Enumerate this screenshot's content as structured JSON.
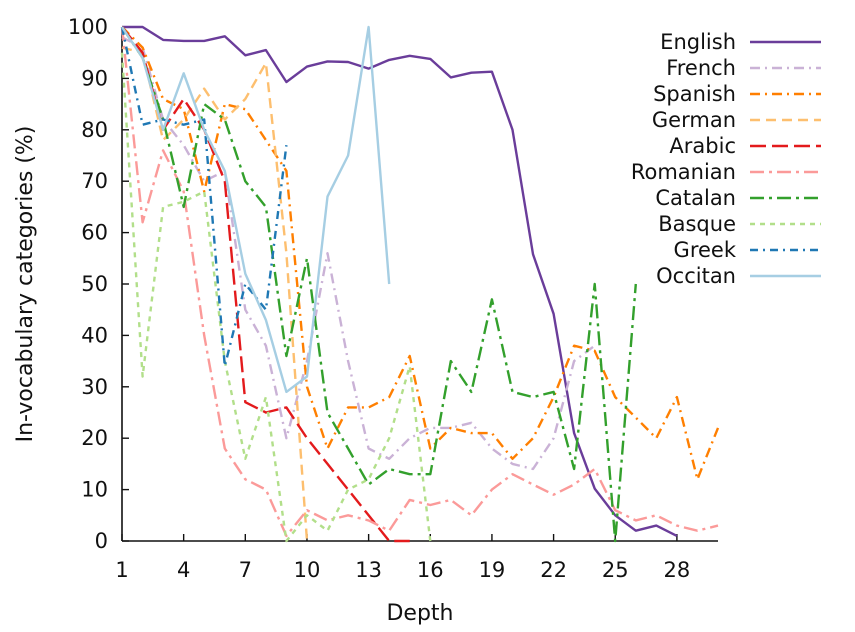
{
  "chart_data": {
    "type": "line",
    "title": "",
    "xlabel": "Depth",
    "ylabel": "In-vocabulary categories (%)",
    "xlim": [
      1,
      30
    ],
    "ylim": [
      0,
      100
    ],
    "xticks": [
      1,
      4,
      7,
      10,
      13,
      16,
      19,
      22,
      25,
      28
    ],
    "yticks": [
      0,
      10,
      20,
      30,
      40,
      50,
      60,
      70,
      80,
      90,
      100
    ],
    "grid": false,
    "legend_position": "top-right",
    "series": [
      {
        "name": "English",
        "color": "#6a3d9a",
        "dash": "solid",
        "x": [
          1,
          2,
          3,
          4,
          5,
          6,
          7,
          8,
          9,
          10,
          11,
          12,
          13,
          14,
          15,
          16,
          17,
          18,
          19,
          20,
          21,
          22,
          23,
          24,
          25,
          26,
          27,
          28
        ],
        "y": [
          100,
          100,
          97.5,
          97.3,
          97.3,
          98.2,
          94.5,
          95.5,
          89.3,
          92.3,
          93.3,
          93.2,
          91.9,
          93.6,
          94.4,
          93.8,
          90.2,
          91.1,
          91.3,
          80,
          55.8,
          44.2,
          21,
          10.2,
          5,
          2,
          3,
          1
        ]
      },
      {
        "name": "French",
        "color": "#cab2d6",
        "dash": "10,5,2,5",
        "x": [
          1,
          2,
          3,
          4,
          5,
          6,
          7,
          8,
          9,
          10,
          11,
          12,
          13,
          14,
          15,
          16,
          17,
          18,
          19,
          20,
          21,
          22,
          23,
          24
        ],
        "y": [
          98,
          96,
          82,
          77,
          70,
          72,
          45,
          38,
          20,
          35,
          56,
          35,
          18,
          16,
          20,
          22,
          22,
          23,
          18,
          15,
          14,
          20,
          35,
          38
        ]
      },
      {
        "name": "Spanish",
        "color": "#ff7f00",
        "dash": "10,5,2,5",
        "x": [
          1,
          2,
          3,
          4,
          5,
          6,
          7,
          8,
          9,
          10,
          11,
          12,
          13,
          14,
          15,
          16,
          17,
          18,
          19,
          20,
          21,
          22,
          23,
          24,
          25,
          26,
          27,
          28,
          29,
          30
        ],
        "y": [
          100,
          96,
          86,
          84,
          68,
          85,
          84,
          78,
          72,
          30,
          18,
          26,
          26,
          28,
          36,
          18,
          22,
          21,
          21,
          16,
          20,
          28,
          38,
          37,
          28,
          24,
          20,
          28,
          12,
          22
        ]
      },
      {
        "name": "German",
        "color": "#fdbf6f",
        "dash": "10,6",
        "x": [
          1,
          2,
          3,
          4,
          5,
          6,
          7,
          8,
          9,
          10
        ],
        "y": [
          96,
          95,
          78,
          82,
          88,
          82,
          86,
          93,
          56,
          0
        ]
      },
      {
        "name": "Arabic",
        "color": "#e31a1c",
        "dash": "16,6",
        "x": [
          1,
          2,
          3,
          4,
          5,
          6,
          7,
          8,
          9,
          10,
          11,
          12,
          13,
          14,
          15
        ],
        "y": [
          100,
          95,
          80,
          86,
          80,
          70,
          27,
          25,
          26,
          20,
          15,
          10,
          5,
          0,
          0
        ]
      },
      {
        "name": "Romanian",
        "color": "#fb9a99",
        "dash": "14,5,3,5",
        "x": [
          1,
          2,
          3,
          4,
          5,
          6,
          7,
          8,
          9,
          10,
          11,
          12,
          13,
          14,
          15,
          16,
          17,
          18,
          19,
          20,
          21,
          22,
          23,
          24,
          25,
          26,
          27,
          28,
          29,
          30
        ],
        "y": [
          100,
          62,
          76,
          68,
          40,
          18,
          12,
          10,
          1,
          6,
          4,
          5,
          4,
          2,
          8,
          7,
          8,
          5,
          10,
          13,
          11,
          9,
          11,
          14,
          6,
          4,
          5,
          3,
          2,
          3
        ]
      },
      {
        "name": "Catalan",
        "color": "#33a02c",
        "dash": "14,5,3,5",
        "x": [
          1,
          2,
          3,
          4,
          5,
          6,
          7,
          8,
          9,
          10,
          11,
          12,
          13,
          14,
          15,
          16,
          17,
          18,
          19,
          20,
          21,
          22,
          23,
          24,
          25,
          26
        ],
        "y": [
          100,
          94,
          82,
          65,
          85,
          82,
          70,
          65,
          36,
          55,
          25,
          18,
          11,
          14,
          13,
          13,
          35,
          29,
          47,
          29,
          28,
          29,
          14,
          50,
          0,
          50
        ]
      },
      {
        "name": "Basque",
        "color": "#b2df8a",
        "dash": "5,5",
        "x": [
          1,
          2,
          3,
          4,
          5,
          6,
          7,
          8,
          9,
          10,
          11,
          12,
          13,
          14,
          15,
          16
        ],
        "y": [
          95,
          32,
          65,
          66,
          68,
          35,
          16,
          28,
          0,
          5,
          2,
          10,
          12,
          20,
          34,
          0
        ]
      },
      {
        "name": "Greek",
        "color": "#1f78b4",
        "dash": "8,5,2,5",
        "x": [
          1,
          2,
          3,
          4,
          5,
          6,
          7,
          8,
          9
        ],
        "y": [
          100,
          81,
          82,
          81,
          82,
          34,
          50,
          45,
          77
        ]
      },
      {
        "name": "Occitan",
        "color": "#a6cee3",
        "dash": "solid",
        "x": [
          1,
          2,
          3,
          4,
          5,
          6,
          7,
          8,
          9,
          10,
          11,
          12,
          13,
          14
        ],
        "y": [
          100,
          94,
          80,
          91,
          80,
          72,
          52,
          43,
          29,
          32,
          67,
          75,
          100,
          50
        ]
      }
    ]
  }
}
